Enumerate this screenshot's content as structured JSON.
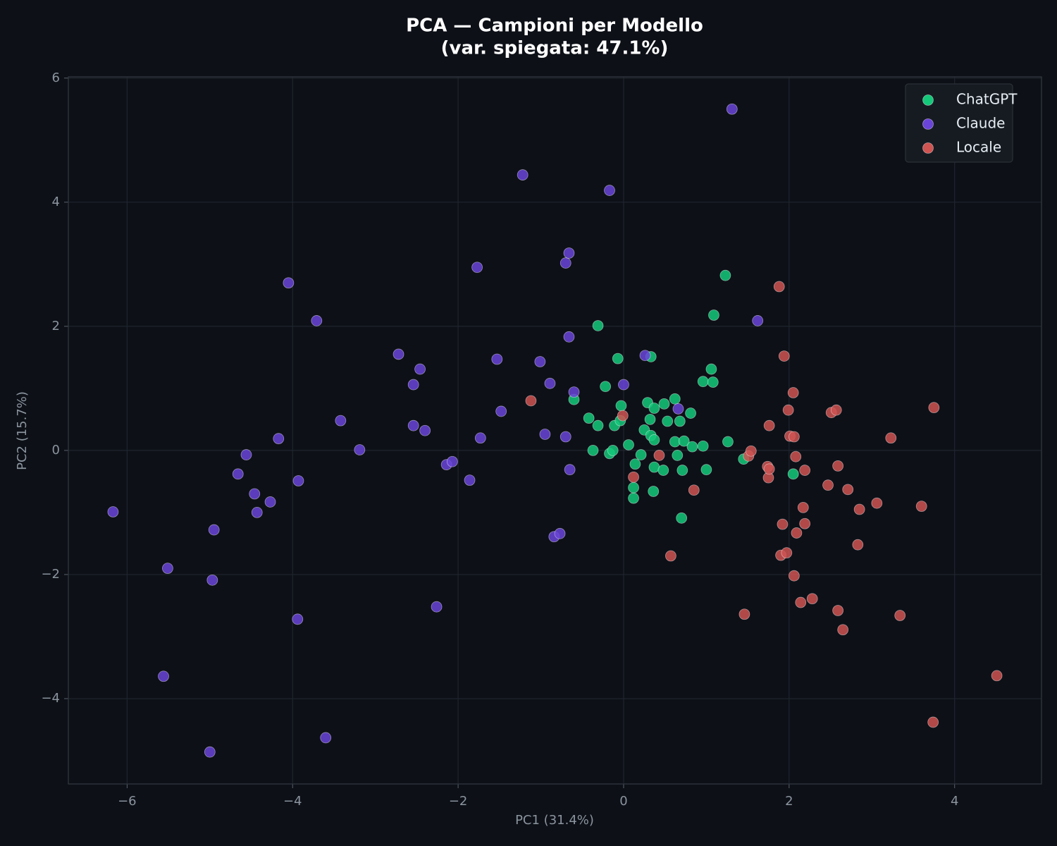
{
  "chart_data": {
    "type": "scatter",
    "title": [
      "PCA — Campioni per Modello",
      "(var. spiegata: 47.1%)"
    ],
    "x_label": "PC1 (31.4%)",
    "y_label": "PC2 (15.7%)",
    "xlim": [
      -6.71,
      5.05
    ],
    "ylim": [
      -5.375,
      6.02
    ],
    "xticks": [
      {
        "value": -6,
        "label": "−6"
      },
      {
        "value": -4,
        "label": "−4"
      },
      {
        "value": -2,
        "label": "−2"
      },
      0,
      2,
      4
    ],
    "yticks": [
      {
        "value": -4,
        "label": "−4"
      },
      {
        "value": -2,
        "label": "−2"
      },
      0,
      2,
      4,
      6
    ],
    "grid": true,
    "legend": "upper right",
    "series": [
      {
        "name": "ChatGPT",
        "color": "#14c97a",
        "x": [
          -0.6,
          -0.42,
          -0.37,
          -0.31,
          -0.31,
          -0.22,
          -0.17,
          -0.13,
          -0.11,
          -0.07,
          -0.04,
          -0.03,
          0.06,
          0.12,
          0.12,
          0.14,
          0.21,
          0.25,
          0.29,
          0.32,
          0.33,
          0.33,
          0.36,
          0.37,
          0.37,
          0.37,
          0.48,
          0.49,
          0.53,
          0.62,
          0.62,
          0.65,
          0.68,
          0.7,
          0.71,
          0.73,
          0.81,
          0.83,
          0.96,
          0.96,
          1.0,
          1.06,
          1.08,
          1.09,
          1.23,
          1.26,
          1.45,
          2.05
        ],
        "y": [
          0.82,
          0.52,
          0.0,
          2.01,
          0.4,
          1.03,
          -0.05,
          0.0,
          0.4,
          1.48,
          0.48,
          0.72,
          0.09,
          -0.6,
          -0.77,
          -0.22,
          -0.07,
          0.33,
          0.77,
          0.5,
          1.51,
          0.24,
          -0.66,
          -0.27,
          0.17,
          0.68,
          -0.32,
          0.75,
          0.47,
          0.83,
          0.14,
          -0.08,
          0.47,
          -1.09,
          -0.32,
          0.15,
          0.6,
          0.06,
          1.11,
          0.07,
          -0.31,
          1.31,
          1.1,
          2.18,
          2.82,
          0.14,
          -0.14,
          -0.38
        ]
      },
      {
        "name": "Claude",
        "color": "#6a44d8",
        "x": [
          -6.17,
          -5.51,
          -5.56,
          -5.0,
          -4.97,
          -4.95,
          -4.66,
          -4.56,
          -4.46,
          -4.43,
          -4.27,
          -4.17,
          -4.05,
          -3.94,
          -3.93,
          -3.71,
          -3.6,
          -3.42,
          -3.19,
          -2.72,
          -2.54,
          -2.54,
          -2.46,
          -2.4,
          -2.26,
          -2.14,
          -2.07,
          -1.86,
          -1.77,
          -1.73,
          -1.53,
          -1.48,
          -1.22,
          -1.01,
          -0.95,
          -0.89,
          -0.84,
          -0.77,
          -0.7,
          -0.7,
          -0.66,
          -0.66,
          -0.65,
          -0.6,
          -0.17,
          0.0,
          0.26,
          0.66,
          1.31,
          1.62
        ],
        "y": [
          -0.99,
          -1.9,
          -3.64,
          -4.86,
          -2.09,
          -1.28,
          -0.38,
          -0.07,
          -0.7,
          -1.0,
          -0.83,
          0.19,
          2.7,
          -2.72,
          -0.49,
          2.09,
          -4.63,
          0.48,
          0.01,
          1.55,
          1.06,
          0.4,
          1.31,
          0.32,
          -2.52,
          -0.23,
          -0.18,
          -0.48,
          2.95,
          0.2,
          1.47,
          0.63,
          4.44,
          1.43,
          0.26,
          1.08,
          -1.39,
          -1.34,
          3.02,
          0.22,
          3.18,
          1.83,
          -0.31,
          0.94,
          4.19,
          1.06,
          1.53,
          0.67,
          5.5,
          2.09
        ]
      },
      {
        "name": "Locale",
        "color": "#cf5452",
        "x": [
          -1.12,
          -0.01,
          0.12,
          0.43,
          0.57,
          0.85,
          1.46,
          1.51,
          1.54,
          1.74,
          1.75,
          1.76,
          1.76,
          1.88,
          1.9,
          1.92,
          1.94,
          1.97,
          1.99,
          2.01,
          2.05,
          2.06,
          2.06,
          2.08,
          2.09,
          2.14,
          2.17,
          2.19,
          2.19,
          2.28,
          2.47,
          2.51,
          2.57,
          2.59,
          2.59,
          2.65,
          2.71,
          2.83,
          2.85,
          3.06,
          3.23,
          3.34,
          3.6,
          3.74,
          3.75,
          4.51
        ],
        "y": [
          0.8,
          0.56,
          -0.43,
          -0.08,
          -1.7,
          -0.64,
          -2.64,
          -0.09,
          -0.01,
          -0.26,
          -0.44,
          -0.3,
          0.4,
          2.64,
          -1.69,
          -1.19,
          1.52,
          -1.65,
          0.65,
          0.23,
          0.93,
          -2.02,
          0.22,
          -0.1,
          -1.33,
          -2.45,
          -0.92,
          -0.32,
          -1.18,
          -2.39,
          -0.56,
          0.61,
          0.65,
          -0.25,
          -2.58,
          -2.89,
          -0.63,
          -1.52,
          -0.95,
          -0.85,
          0.2,
          -2.66,
          -0.9,
          -4.38,
          0.69,
          -3.63
        ]
      }
    ]
  }
}
